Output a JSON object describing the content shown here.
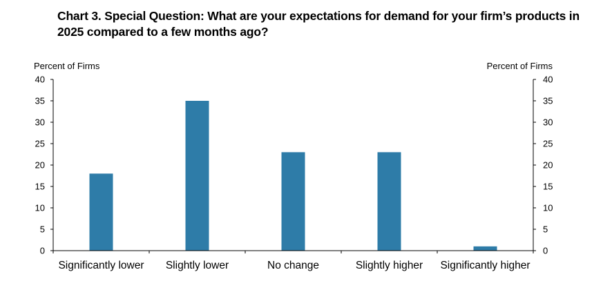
{
  "chart_data": {
    "type": "bar",
    "title": "Chart 3. Special Question: What are your expectations for demand for your firm’s products in 2025 compared to a few months ago?",
    "ylabel_left": "Percent of Firms",
    "ylabel_right": "Percent of Firms",
    "categories": [
      "Significantly lower",
      "Slightly lower",
      "No change",
      "Slightly higher",
      "Significantly higher"
    ],
    "values": [
      18,
      35,
      23,
      23,
      1
    ],
    "ylim": [
      0,
      40
    ],
    "yticks": [
      0,
      5,
      10,
      15,
      20,
      25,
      30,
      35,
      40
    ],
    "grid": false,
    "legend": "none",
    "bar_color": "#2e7ca8"
  }
}
